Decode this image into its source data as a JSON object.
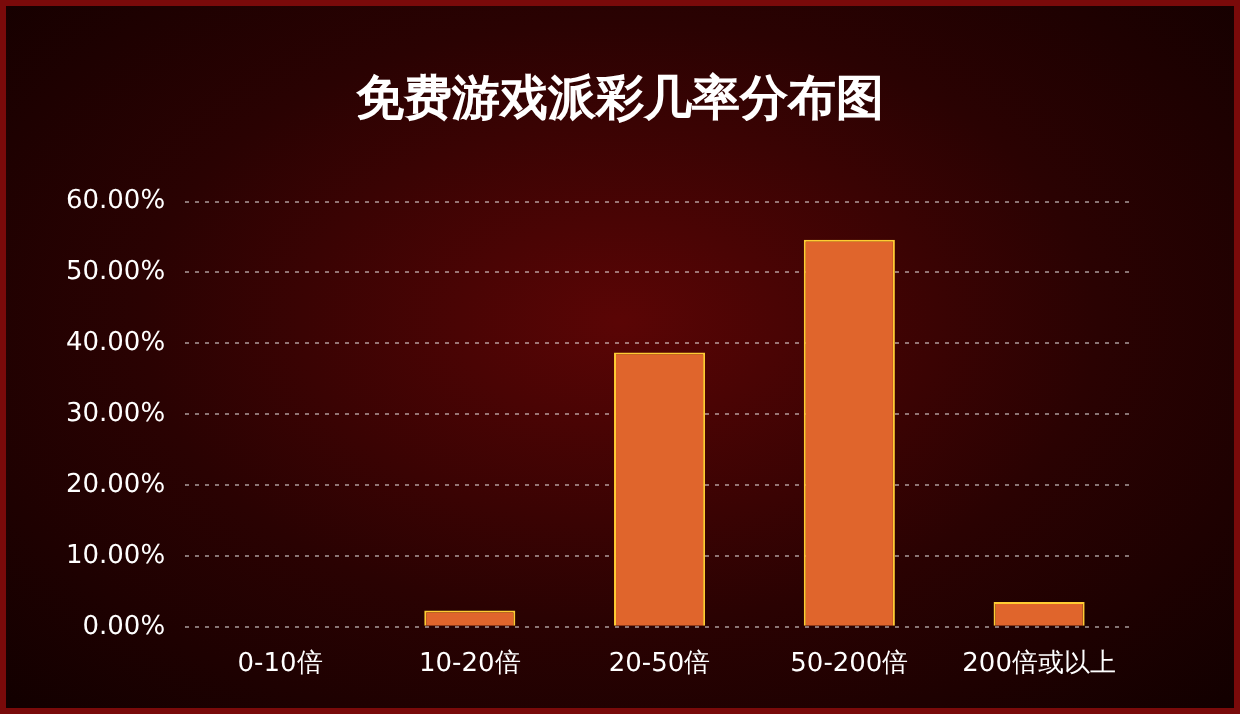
{
  "chart_data": {
    "type": "bar",
    "title": "免费游戏派彩几率分布图",
    "categories": [
      "0-10倍",
      "10-20倍",
      "20-50倍",
      "50-200倍",
      "200倍或以上"
    ],
    "values": [
      0,
      2.3,
      38.7,
      54.6,
      3.5
    ],
    "color": "#e0652c",
    "ylim": [
      0,
      60
    ],
    "yticks": [
      {
        "value": 0,
        "label": "0.00%"
      },
      {
        "value": 10,
        "label": "10.00%"
      },
      {
        "value": 20,
        "label": "20.00%"
      },
      {
        "value": 30,
        "label": "30.00%"
      },
      {
        "value": 40,
        "label": "40.00%"
      },
      {
        "value": 50,
        "label": "50.00%"
      },
      {
        "value": 60,
        "label": "60.00%"
      }
    ],
    "grid": "y"
  }
}
